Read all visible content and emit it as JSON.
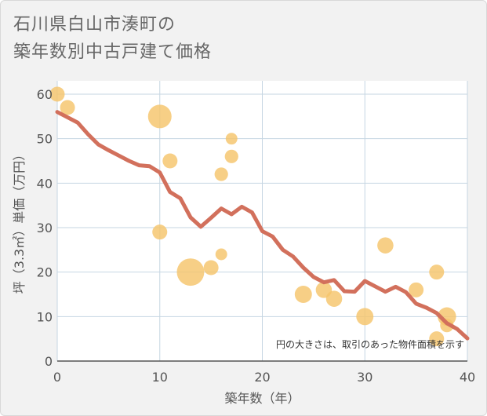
{
  "title_lines": [
    "石川県白山市湊町の",
    "築年数別中古戸建て価格"
  ],
  "chart_data": {
    "type": "scatter",
    "xlabel": "築年数（年）",
    "ylabel": "坪（3.3㎡）単価（万円）",
    "xlim": [
      0,
      40
    ],
    "ylim": [
      0,
      63
    ],
    "xticks": [
      0,
      10,
      20,
      30,
      40
    ],
    "yticks": [
      0,
      10,
      20,
      30,
      40,
      50,
      60
    ],
    "grid": true,
    "annotation": "円の大きさは、取引のあった物件面積を示す",
    "colors": {
      "points": "#f5c46b",
      "trend": "#d2705c",
      "grid": "#c6d6e2"
    },
    "points": [
      {
        "x": 0,
        "y": 60,
        "size": 1
      },
      {
        "x": 1,
        "y": 57,
        "size": 1
      },
      {
        "x": 10,
        "y": 55,
        "size": 4
      },
      {
        "x": 10,
        "y": 29,
        "size": 1
      },
      {
        "x": 11,
        "y": 45,
        "size": 1
      },
      {
        "x": 13,
        "y": 20,
        "size": 6
      },
      {
        "x": 15,
        "y": 21,
        "size": 1
      },
      {
        "x": 16,
        "y": 42,
        "size": 0.7
      },
      {
        "x": 16,
        "y": 24,
        "size": 0.4
      },
      {
        "x": 17,
        "y": 50,
        "size": 0.4
      },
      {
        "x": 17,
        "y": 46,
        "size": 0.7
      },
      {
        "x": 24,
        "y": 15,
        "size": 1.6
      },
      {
        "x": 26,
        "y": 16,
        "size": 1.3
      },
      {
        "x": 27,
        "y": 14,
        "size": 1.3
      },
      {
        "x": 30,
        "y": 10,
        "size": 1.6
      },
      {
        "x": 32,
        "y": 26,
        "size": 1.3
      },
      {
        "x": 35,
        "y": 16,
        "size": 1
      },
      {
        "x": 37,
        "y": 20,
        "size": 1
      },
      {
        "x": 37,
        "y": 5,
        "size": 1
      },
      {
        "x": 38,
        "y": 10,
        "size": 2
      },
      {
        "x": 38,
        "y": 8,
        "size": 0.7
      }
    ],
    "trend": {
      "x": [
        0,
        1,
        2,
        3,
        4,
        5,
        6,
        7,
        8,
        9,
        10,
        11,
        12,
        13,
        14,
        15,
        16,
        17,
        18,
        19,
        20,
        21,
        22,
        23,
        24,
        25,
        26,
        27,
        28,
        29,
        30,
        31,
        32,
        33,
        34,
        35,
        36,
        37,
        38,
        39,
        40
      ],
      "y": [
        56,
        54.8,
        53.6,
        51,
        48.7,
        47.4,
        46.2,
        45,
        44,
        43.8,
        42.4,
        38,
        36.6,
        32.3,
        30.2,
        32.2,
        34.3,
        33,
        34.7,
        33.4,
        29.2,
        28,
        25,
        23.5,
        21,
        18.9,
        17.7,
        18.2,
        15.7,
        15.6,
        18,
        16.8,
        15.6,
        16.7,
        15.5,
        12.9,
        12,
        10.8,
        8.5,
        7.2,
        5.1
      ]
    }
  }
}
